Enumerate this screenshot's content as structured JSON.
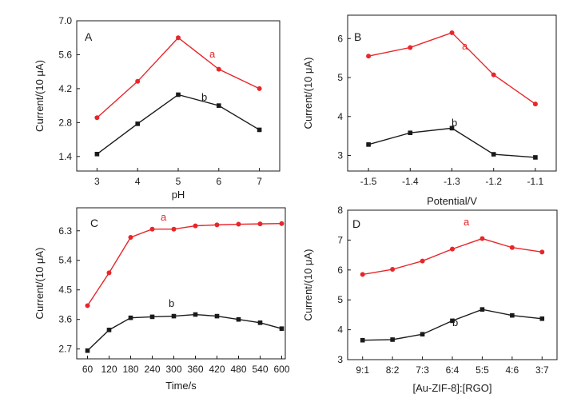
{
  "colors": {
    "a": "#e8262a",
    "b": "#1a1a1a",
    "axis": "#1a1a1a"
  },
  "chart_data": [
    {
      "type": "line",
      "title": "A",
      "xlabel": "pH",
      "ylabel": "Current/(10 μA)",
      "x": [
        3,
        4,
        5,
        6,
        7
      ],
      "xticks": [
        "3",
        "4",
        "5",
        "6",
        "7"
      ],
      "xlim": [
        2.5,
        7.5
      ],
      "ylim": [
        0.8,
        7.0
      ],
      "yticks": [
        "1.4",
        "2.8",
        "4.2",
        "5.6",
        "7.0"
      ],
      "grid": false,
      "series": [
        {
          "name": "a",
          "values": [
            3.0,
            4.5,
            6.3,
            5.0,
            4.2
          ]
        },
        {
          "name": "b",
          "values": [
            1.5,
            2.75,
            3.95,
            3.5,
            2.5
          ]
        }
      ]
    },
    {
      "type": "line",
      "title": "B",
      "xlabel": "Potential/V",
      "ylabel": "Current/(10 μA)",
      "x": [
        -1.5,
        -1.4,
        -1.3,
        -1.2,
        -1.1
      ],
      "xticks": [
        "-1.5",
        "-1.4",
        "-1.3",
        "-1.2",
        "-1.1"
      ],
      "xlim": [
        -1.55,
        -1.05
      ],
      "ylim": [
        2.6,
        6.6
      ],
      "yticks": [
        "3",
        "4",
        "5",
        "6"
      ],
      "grid": false,
      "series": [
        {
          "name": "a",
          "values": [
            5.55,
            5.77,
            6.15,
            5.07,
            4.32
          ]
        },
        {
          "name": "b",
          "values": [
            3.28,
            3.58,
            3.7,
            3.03,
            2.95
          ]
        }
      ]
    },
    {
      "type": "line",
      "title": "C",
      "xlabel": "Time/s",
      "ylabel": "Current/(10 μA)",
      "x": [
        60,
        120,
        180,
        240,
        300,
        360,
        420,
        480,
        540,
        600
      ],
      "xticks": [
        "60",
        "120",
        "180",
        "240",
        "300",
        "360",
        "420",
        "480",
        "540",
        "600"
      ],
      "xlim": [
        30,
        610
      ],
      "ylim": [
        2.4,
        7.0
      ],
      "yticks": [
        "2.7",
        "3.6",
        "4.5",
        "5.4",
        "6.3"
      ],
      "grid": false,
      "series": [
        {
          "name": "a",
          "values": [
            4.02,
            5.02,
            6.1,
            6.35,
            6.35,
            6.45,
            6.48,
            6.5,
            6.51,
            6.52
          ]
        },
        {
          "name": "b",
          "values": [
            2.65,
            3.28,
            3.65,
            3.68,
            3.7,
            3.75,
            3.7,
            3.6,
            3.5,
            3.32
          ]
        }
      ]
    },
    {
      "type": "line",
      "title": "D",
      "xlabel": "[Au-ZIF-8]:[RGO]",
      "ylabel": "Current/(10 μA)",
      "x": [
        "9:1",
        "8:2",
        "7:3",
        "6:4",
        "5:5",
        "4:6",
        "3:7"
      ],
      "xticks": [
        "9:1",
        "8:2",
        "7:3",
        "6:4",
        "5:5",
        "4:6",
        "3:7"
      ],
      "xlim": [
        0.5,
        7.5
      ],
      "ylim": [
        3,
        8
      ],
      "yticks": [
        "3",
        "4",
        "5",
        "6",
        "7",
        "8"
      ],
      "grid": false,
      "series": [
        {
          "name": "a",
          "values": [
            5.85,
            6.02,
            6.3,
            6.7,
            7.05,
            6.75,
            6.6
          ]
        },
        {
          "name": "b",
          "values": [
            3.65,
            3.67,
            3.85,
            4.3,
            4.68,
            4.48,
            4.37
          ]
        }
      ]
    }
  ]
}
